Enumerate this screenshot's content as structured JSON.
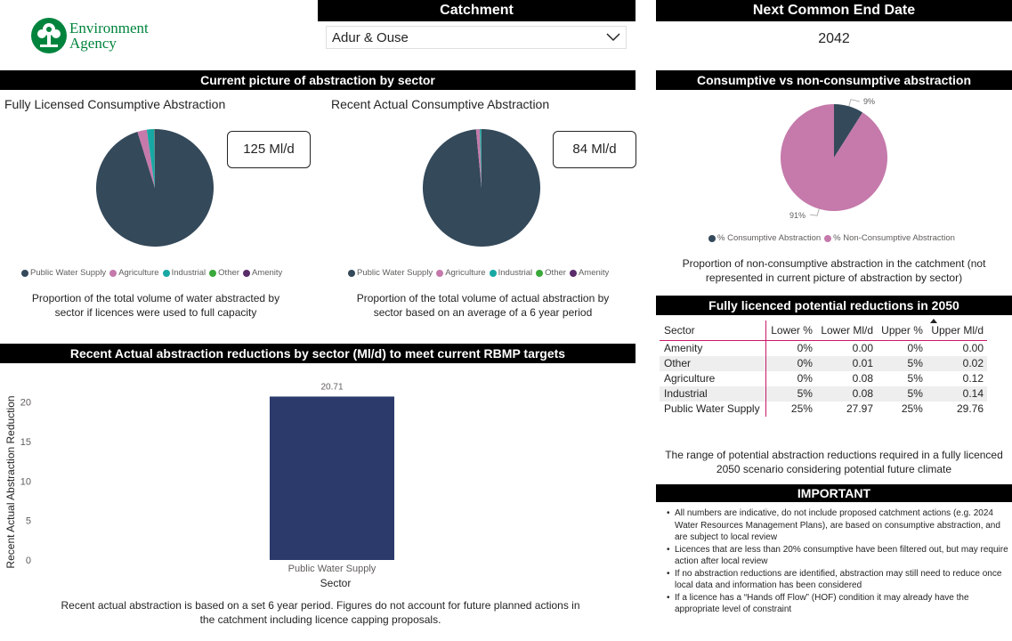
{
  "logo": {
    "line1": "Environment",
    "line2": "Agency",
    "color": "#00843d"
  },
  "catchment": {
    "header": "Catchment",
    "selected": "Adur & Ouse"
  },
  "end_date": {
    "header": "Next Common End Date",
    "value": "2042"
  },
  "current_picture": {
    "header": "Current picture of abstraction by sector",
    "licensed": {
      "title": "Fully Licensed Consumptive Abstraction",
      "card": "125 Ml/d",
      "caption": "Proportion of the total volume of water abstracted by sector if licences were used to full capacity"
    },
    "actual": {
      "title": "Recent Actual Consumptive Abstraction",
      "card": "84 Ml/d",
      "caption": "Proportion of the total volume of actual abstraction by sector based on an average of a 6 year period"
    },
    "legend": [
      {
        "label": "Public Water Supply",
        "color": "#34495a"
      },
      {
        "label": "Agriculture",
        "color": "#c57aab"
      },
      {
        "label": "Industrial",
        "color": "#17a8a4"
      },
      {
        "label": "Other",
        "color": "#3aa93a"
      },
      {
        "label": "Amenity",
        "color": "#5a2d6a"
      }
    ]
  },
  "consumptive": {
    "header": "Consumptive vs non-consumptive abstraction",
    "legend": [
      {
        "label": "% Consumptive Abstraction",
        "color": "#34495a"
      },
      {
        "label": "% Non-Consumptive Abstraction",
        "color": "#c57aab"
      }
    ],
    "caption": "Proportion of non-consumptive abstraction in the catchment (not represented in current picture of abstraction by sector)"
  },
  "reductions_table": {
    "header": "Fully licenced potential reductions in 2050",
    "columns": [
      "Sector",
      "Lower %",
      "Lower Ml/d",
      "Upper %",
      "Upper Ml/d"
    ],
    "rows": [
      [
        "Amenity",
        "0%",
        "0.00",
        "0%",
        "0.00"
      ],
      [
        "Other",
        "0%",
        "0.01",
        "5%",
        "0.02"
      ],
      [
        "Agriculture",
        "0%",
        "0.08",
        "5%",
        "0.12"
      ],
      [
        "Industrial",
        "5%",
        "0.08",
        "5%",
        "0.14"
      ],
      [
        "Public Water Supply",
        "25%",
        "27.97",
        "25%",
        "29.76"
      ]
    ],
    "caption": "The range of potential abstraction reductions required in a fully licenced 2050 scenario considering potential future climate",
    "accent": "#c9196a"
  },
  "important": {
    "header": "IMPORTANT",
    "items": [
      "All numbers are indicative, do not include proposed catchment actions (e.g. 2024 Water Resources Management Plans), are based on consumptive abstraction, and are subject to local review",
      "Licences that are less than 20% consumptive have been filtered out, but may require action after local review",
      "If no abstraction reductions are identified, abstraction may still need to reduce once local data and information has been considered",
      "If a licence has a “Hands off Flow” (HOF) condition it may already have the appropriate level of constraint"
    ]
  },
  "reduction_chart": {
    "header": "Recent Actual abstraction reductions by sector (Ml/d) to meet current RBMP targets",
    "caption": "Recent actual abstraction is based on a set 6 year period. Figures do not account for future planned actions in the catchment including licence capping proposals."
  },
  "chart_data": [
    {
      "type": "pie",
      "title": "Fully Licensed Consumptive Abstraction",
      "categories": [
        "Public Water Supply",
        "Agriculture",
        "Industrial",
        "Other",
        "Amenity"
      ],
      "values": [
        95.2,
        2.6,
        2.0,
        0.1,
        0.1
      ],
      "colors": [
        "#34495a",
        "#c57aab",
        "#17a8a4",
        "#3aa93a",
        "#5a2d6a"
      ],
      "legend": "bottom"
    },
    {
      "type": "pie",
      "title": "Recent Actual Consumptive Abstraction",
      "categories": [
        "Public Water Supply",
        "Agriculture",
        "Industrial",
        "Other",
        "Amenity"
      ],
      "values": [
        98.5,
        1.0,
        0.4,
        0.05,
        0.05
      ],
      "colors": [
        "#34495a",
        "#c57aab",
        "#17a8a4",
        "#3aa93a",
        "#5a2d6a"
      ],
      "legend": "bottom"
    },
    {
      "type": "pie",
      "title": "Consumptive vs non-consumptive abstraction",
      "categories": [
        "% Consumptive Abstraction",
        "% Non-Consumptive Abstraction"
      ],
      "values": [
        9,
        91
      ],
      "labels": [
        "9%",
        "91%"
      ],
      "colors": [
        "#34495a",
        "#c57aab"
      ],
      "legend": "bottom"
    },
    {
      "type": "bar",
      "title": "Recent Actual abstraction reductions by sector (Ml/d) to meet current RBMP targets",
      "categories": [
        "Public Water Supply"
      ],
      "values": [
        20.71
      ],
      "data_labels": [
        "20.71"
      ],
      "xlabel": "Sector",
      "ylabel": "Recent Actual Abstraction Reduction",
      "ylim": [
        0,
        22
      ],
      "yticks": [
        "0",
        "5",
        "10",
        "15",
        "20"
      ],
      "color": "#2b3a6b",
      "grid": false
    }
  ]
}
